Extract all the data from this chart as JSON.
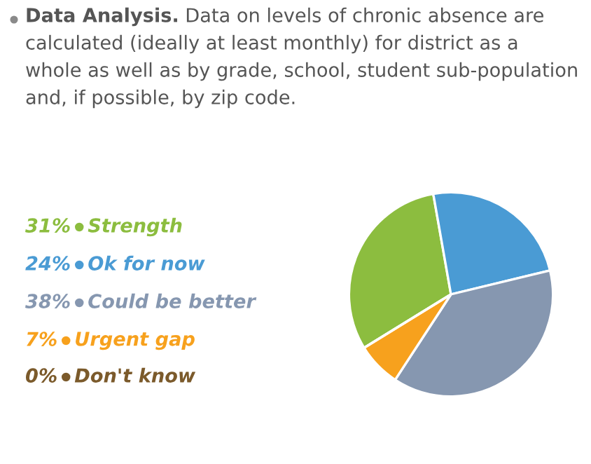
{
  "chart_data": {
    "type": "pie",
    "title": "Data Analysis.",
    "subtitle": "Data on levels of chronic absence are calculated (ideally at least monthly) for district as a whole as well as by grade, school, student sub-population and, if possible, by zip code.",
    "categories": [
      "Strength",
      "Ok for now",
      "Could be better",
      "Urgent gap",
      "Don't know"
    ],
    "values": [
      31,
      24,
      38,
      7,
      0
    ],
    "value_labels": [
      "31%",
      "24%",
      "38%",
      "7%",
      "0%"
    ],
    "colors": [
      "#8cbd3f",
      "#4a9bd4",
      "#8697b0",
      "#f7a11d",
      "#7b5a2b"
    ],
    "legend": "left"
  }
}
